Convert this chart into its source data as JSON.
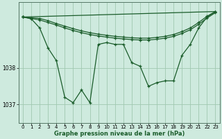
{
  "background_color": "#ceeade",
  "plot_bg_color": "#ceeade",
  "line_color": "#1a5c2a",
  "grid_color": "#a0c8b0",
  "xlabel": "Graphe pression niveau de la mer (hPa)",
  "xlim": [
    -0.5,
    23.5
  ],
  "ylim": [
    1036.5,
    1039.8
  ],
  "yticks": [
    1037,
    1038
  ],
  "xticks": [
    0,
    1,
    2,
    3,
    4,
    5,
    6,
    7,
    8,
    9,
    10,
    11,
    12,
    13,
    14,
    15,
    16,
    17,
    18,
    19,
    20,
    21,
    22,
    23
  ],
  "zigzag": {
    "x": [
      0,
      1,
      2,
      3,
      4,
      5,
      6,
      7,
      8,
      9,
      10,
      11,
      12,
      13,
      14,
      15,
      16,
      17,
      18,
      19,
      20,
      21,
      22,
      23
    ],
    "y": [
      1039.4,
      1039.35,
      1039.1,
      1038.55,
      1038.2,
      1037.2,
      1037.05,
      1037.4,
      1037.05,
      1038.65,
      1038.7,
      1038.65,
      1038.65,
      1038.15,
      1038.05,
      1037.5,
      1037.6,
      1037.65,
      1037.65,
      1038.35,
      1038.65,
      1039.1,
      1039.4,
      1039.55
    ]
  },
  "line_top": {
    "x": [
      0,
      1,
      2,
      3,
      4,
      5,
      6,
      7,
      8,
      9,
      10,
      11,
      12,
      13,
      14,
      15,
      16,
      17,
      18,
      19,
      20,
      21,
      22,
      23
    ],
    "y": [
      1039.4,
      1039.38,
      1039.36,
      1039.3,
      1039.22,
      1039.15,
      1039.08,
      1039.02,
      1038.97,
      1038.93,
      1038.9,
      1038.87,
      1038.85,
      1038.83,
      1038.82,
      1038.82,
      1038.84,
      1038.87,
      1038.92,
      1039.0,
      1039.1,
      1039.25,
      1039.42,
      1039.55
    ]
  },
  "line_mid1": {
    "x": [
      0,
      1,
      2,
      3,
      4,
      5,
      6,
      7,
      8,
      9,
      10,
      11,
      12,
      13,
      14,
      15,
      16,
      17,
      18,
      19,
      20,
      21,
      22,
      23
    ],
    "y": [
      1039.4,
      1039.36,
      1039.32,
      1039.25,
      1039.18,
      1039.1,
      1039.03,
      1038.97,
      1038.92,
      1038.88,
      1038.85,
      1038.82,
      1038.8,
      1038.78,
      1038.77,
      1038.77,
      1038.79,
      1038.82,
      1038.87,
      1038.95,
      1039.05,
      1039.2,
      1039.37,
      1039.52
    ]
  },
  "line_straight": {
    "x": [
      0,
      23
    ],
    "y": [
      1039.4,
      1039.55
    ]
  }
}
